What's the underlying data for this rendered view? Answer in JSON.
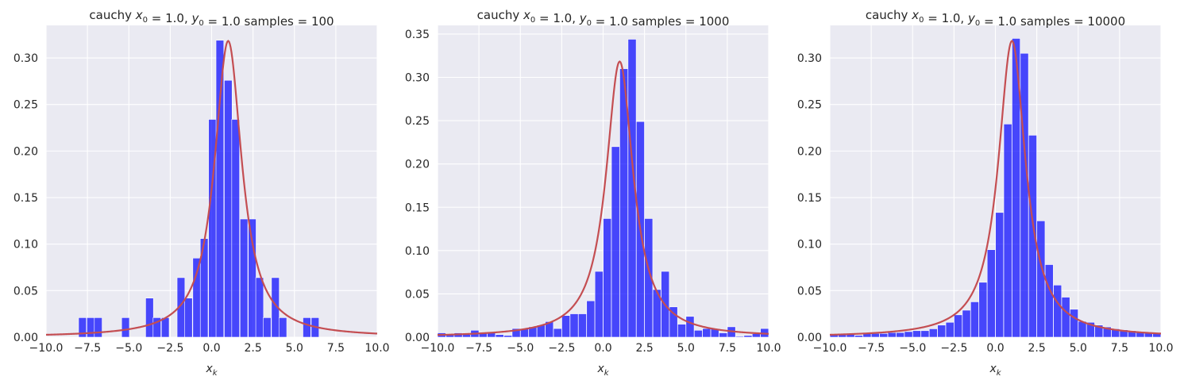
{
  "chart_data": [
    {
      "type": "bar",
      "title": "cauchy x₀ = 1.0, y₀ = 1.0  samples = 100",
      "title_parts": {
        "prefix": "cauchy ",
        "x0_symbol": "x",
        "x0_sub": "0",
        "x0_value": " = 1.0, ",
        "y0_symbol": "y",
        "y0_sub": "0",
        "y0_value": " = 1.0  samples = 100"
      },
      "xlabel_symbol": "x",
      "xlabel_sub": "k",
      "ylabel": "",
      "xlim": [
        -10,
        10
      ],
      "ylim": [
        0,
        0.335
      ],
      "xticks": [
        "−10.0",
        "−7.5",
        "−5.0",
        "−2.5",
        "0.0",
        "2.5",
        "5.0",
        "7.5",
        "10.0"
      ],
      "yticks": [
        "0.00",
        "0.05",
        "0.10",
        "0.15",
        "0.20",
        "0.25",
        "0.30"
      ],
      "grid": true,
      "bin_width": 0.47,
      "bins": [
        {
          "x": -7.8,
          "y": 0.021
        },
        {
          "x": -7.3,
          "y": 0.021
        },
        {
          "x": -6.85,
          "y": 0.021
        },
        {
          "x": -5.2,
          "y": 0.021
        },
        {
          "x": -3.75,
          "y": 0.042
        },
        {
          "x": -3.3,
          "y": 0.021
        },
        {
          "x": -2.8,
          "y": 0.021
        },
        {
          "x": -1.85,
          "y": 0.064
        },
        {
          "x": -1.4,
          "y": 0.042
        },
        {
          "x": -0.9,
          "y": 0.085
        },
        {
          "x": -0.45,
          "y": 0.106
        },
        {
          "x": 0.05,
          "y": 0.234
        },
        {
          "x": 0.5,
          "y": 0.319
        },
        {
          "x": 1.0,
          "y": 0.276
        },
        {
          "x": 1.45,
          "y": 0.234
        },
        {
          "x": 1.95,
          "y": 0.127
        },
        {
          "x": 2.45,
          "y": 0.127
        },
        {
          "x": 2.9,
          "y": 0.064
        },
        {
          "x": 3.35,
          "y": 0.021
        },
        {
          "x": 3.85,
          "y": 0.064
        },
        {
          "x": 4.3,
          "y": 0.021
        },
        {
          "x": 5.75,
          "y": 0.021
        },
        {
          "x": 6.25,
          "y": 0.021
        }
      ],
      "pdf": {
        "x0": 1.0,
        "gamma": 1.0
      }
    },
    {
      "type": "bar",
      "title": "cauchy x₀ = 1.0, y₀ = 1.0  samples = 1000",
      "title_parts": {
        "prefix": "cauchy ",
        "x0_symbol": "x",
        "x0_sub": "0",
        "x0_value": " = 1.0, ",
        "y0_symbol": "y",
        "y0_sub": "0",
        "y0_value": " = 1.0  samples = 1000"
      },
      "xlabel_symbol": "x",
      "xlabel_sub": "k",
      "ylabel": "",
      "xlim": [
        -10,
        10
      ],
      "ylim": [
        0,
        0.36
      ],
      "xticks": [
        "−10.0",
        "−7.5",
        "−5.0",
        "−2.5",
        "0.0",
        "2.5",
        "5.0",
        "7.5",
        "10.0"
      ],
      "yticks": [
        "0.00",
        "0.05",
        "0.10",
        "0.15",
        "0.20",
        "0.25",
        "0.30",
        "0.35"
      ],
      "grid": true,
      "bin_width": 0.49,
      "bins": [
        {
          "x": -9.75,
          "y": 0.005
        },
        {
          "x": -9.25,
          "y": 0.004
        },
        {
          "x": -8.75,
          "y": 0.005
        },
        {
          "x": -8.25,
          "y": 0.003
        },
        {
          "x": -7.75,
          "y": 0.008
        },
        {
          "x": -7.25,
          "y": 0.005
        },
        {
          "x": -6.75,
          "y": 0.005
        },
        {
          "x": -6.25,
          "y": 0.003
        },
        {
          "x": -5.75,
          "y": 0.002
        },
        {
          "x": -5.25,
          "y": 0.01
        },
        {
          "x": -4.75,
          "y": 0.01
        },
        {
          "x": -4.25,
          "y": 0.012
        },
        {
          "x": -3.75,
          "y": 0.014
        },
        {
          "x": -3.25,
          "y": 0.018
        },
        {
          "x": -2.75,
          "y": 0.01
        },
        {
          "x": -2.25,
          "y": 0.025
        },
        {
          "x": -1.75,
          "y": 0.027
        },
        {
          "x": -1.25,
          "y": 0.027
        },
        {
          "x": -0.75,
          "y": 0.042
        },
        {
          "x": -0.25,
          "y": 0.076
        },
        {
          "x": 0.25,
          "y": 0.137
        },
        {
          "x": 0.75,
          "y": 0.22
        },
        {
          "x": 1.25,
          "y": 0.31
        },
        {
          "x": 1.75,
          "y": 0.344
        },
        {
          "x": 2.25,
          "y": 0.249
        },
        {
          "x": 2.75,
          "y": 0.137
        },
        {
          "x": 3.25,
          "y": 0.055
        },
        {
          "x": 3.75,
          "y": 0.076
        },
        {
          "x": 4.25,
          "y": 0.035
        },
        {
          "x": 4.75,
          "y": 0.015
        },
        {
          "x": 5.25,
          "y": 0.024
        },
        {
          "x": 5.75,
          "y": 0.008
        },
        {
          "x": 6.25,
          "y": 0.01
        },
        {
          "x": 6.75,
          "y": 0.01
        },
        {
          "x": 7.25,
          "y": 0.005
        },
        {
          "x": 7.75,
          "y": 0.012
        },
        {
          "x": 8.25,
          "y": 0.001
        },
        {
          "x": 8.75,
          "y": 0.002
        },
        {
          "x": 9.25,
          "y": 0.004
        },
        {
          "x": 9.75,
          "y": 0.01
        }
      ],
      "pdf": {
        "x0": 1.0,
        "gamma": 1.0
      }
    },
    {
      "type": "bar",
      "title": "cauchy x₀ = 1.0, y₀ = 1.0  samples = 10000",
      "title_parts": {
        "prefix": "cauchy ",
        "x0_symbol": "x",
        "x0_sub": "0",
        "x0_value": " = 1.0, ",
        "y0_symbol": "y",
        "y0_sub": "0",
        "y0_value": " = 1.0  samples = 10000"
      },
      "xlabel_symbol": "x",
      "xlabel_sub": "k",
      "ylabel": "",
      "xlim": [
        -10,
        10
      ],
      "ylim": [
        0,
        0.335
      ],
      "xticks": [
        "−10.0",
        "−7.5",
        "−5.0",
        "−2.5",
        "0.0",
        "2.5",
        "5.0",
        "7.5",
        "10.0"
      ],
      "yticks": [
        "0.00",
        "0.05",
        "0.10",
        "0.15",
        "0.20",
        "0.25",
        "0.30"
      ],
      "grid": true,
      "bin_width": 0.49,
      "bins": [
        {
          "x": -9.75,
          "y": 0.003
        },
        {
          "x": -9.25,
          "y": 0.003
        },
        {
          "x": -8.75,
          "y": 0.003
        },
        {
          "x": -8.25,
          "y": 0.002
        },
        {
          "x": -7.75,
          "y": 0.004
        },
        {
          "x": -7.25,
          "y": 0.004
        },
        {
          "x": -6.75,
          "y": 0.004
        },
        {
          "x": -6.25,
          "y": 0.005
        },
        {
          "x": -5.75,
          "y": 0.005
        },
        {
          "x": -5.25,
          "y": 0.006
        },
        {
          "x": -4.75,
          "y": 0.007
        },
        {
          "x": -4.25,
          "y": 0.007
        },
        {
          "x": -3.75,
          "y": 0.009
        },
        {
          "x": -3.25,
          "y": 0.013
        },
        {
          "x": -2.75,
          "y": 0.016
        },
        {
          "x": -2.25,
          "y": 0.024
        },
        {
          "x": -1.75,
          "y": 0.029
        },
        {
          "x": -1.25,
          "y": 0.038
        },
        {
          "x": -0.75,
          "y": 0.059
        },
        {
          "x": -0.25,
          "y": 0.094
        },
        {
          "x": 0.25,
          "y": 0.134
        },
        {
          "x": 0.75,
          "y": 0.229
        },
        {
          "x": 1.25,
          "y": 0.321
        },
        {
          "x": 1.75,
          "y": 0.305
        },
        {
          "x": 2.25,
          "y": 0.217
        },
        {
          "x": 2.75,
          "y": 0.125
        },
        {
          "x": 3.25,
          "y": 0.078
        },
        {
          "x": 3.75,
          "y": 0.056
        },
        {
          "x": 4.25,
          "y": 0.043
        },
        {
          "x": 4.75,
          "y": 0.03
        },
        {
          "x": 5.25,
          "y": 0.017
        },
        {
          "x": 5.75,
          "y": 0.016
        },
        {
          "x": 6.25,
          "y": 0.013
        },
        {
          "x": 6.75,
          "y": 0.011
        },
        {
          "x": 7.25,
          "y": 0.009
        },
        {
          "x": 7.75,
          "y": 0.008
        },
        {
          "x": 8.25,
          "y": 0.007
        },
        {
          "x": 8.75,
          "y": 0.006
        },
        {
          "x": 9.25,
          "y": 0.005
        },
        {
          "x": 9.75,
          "y": 0.004
        }
      ],
      "pdf": {
        "x0": 1.0,
        "gamma": 1.0
      }
    }
  ],
  "colors": {
    "axes_background": "#eaeaf2",
    "bar_fill": "#0000ff",
    "pdf_line": "#c44e52",
    "grid": "#ffffff",
    "text": "#262626"
  }
}
